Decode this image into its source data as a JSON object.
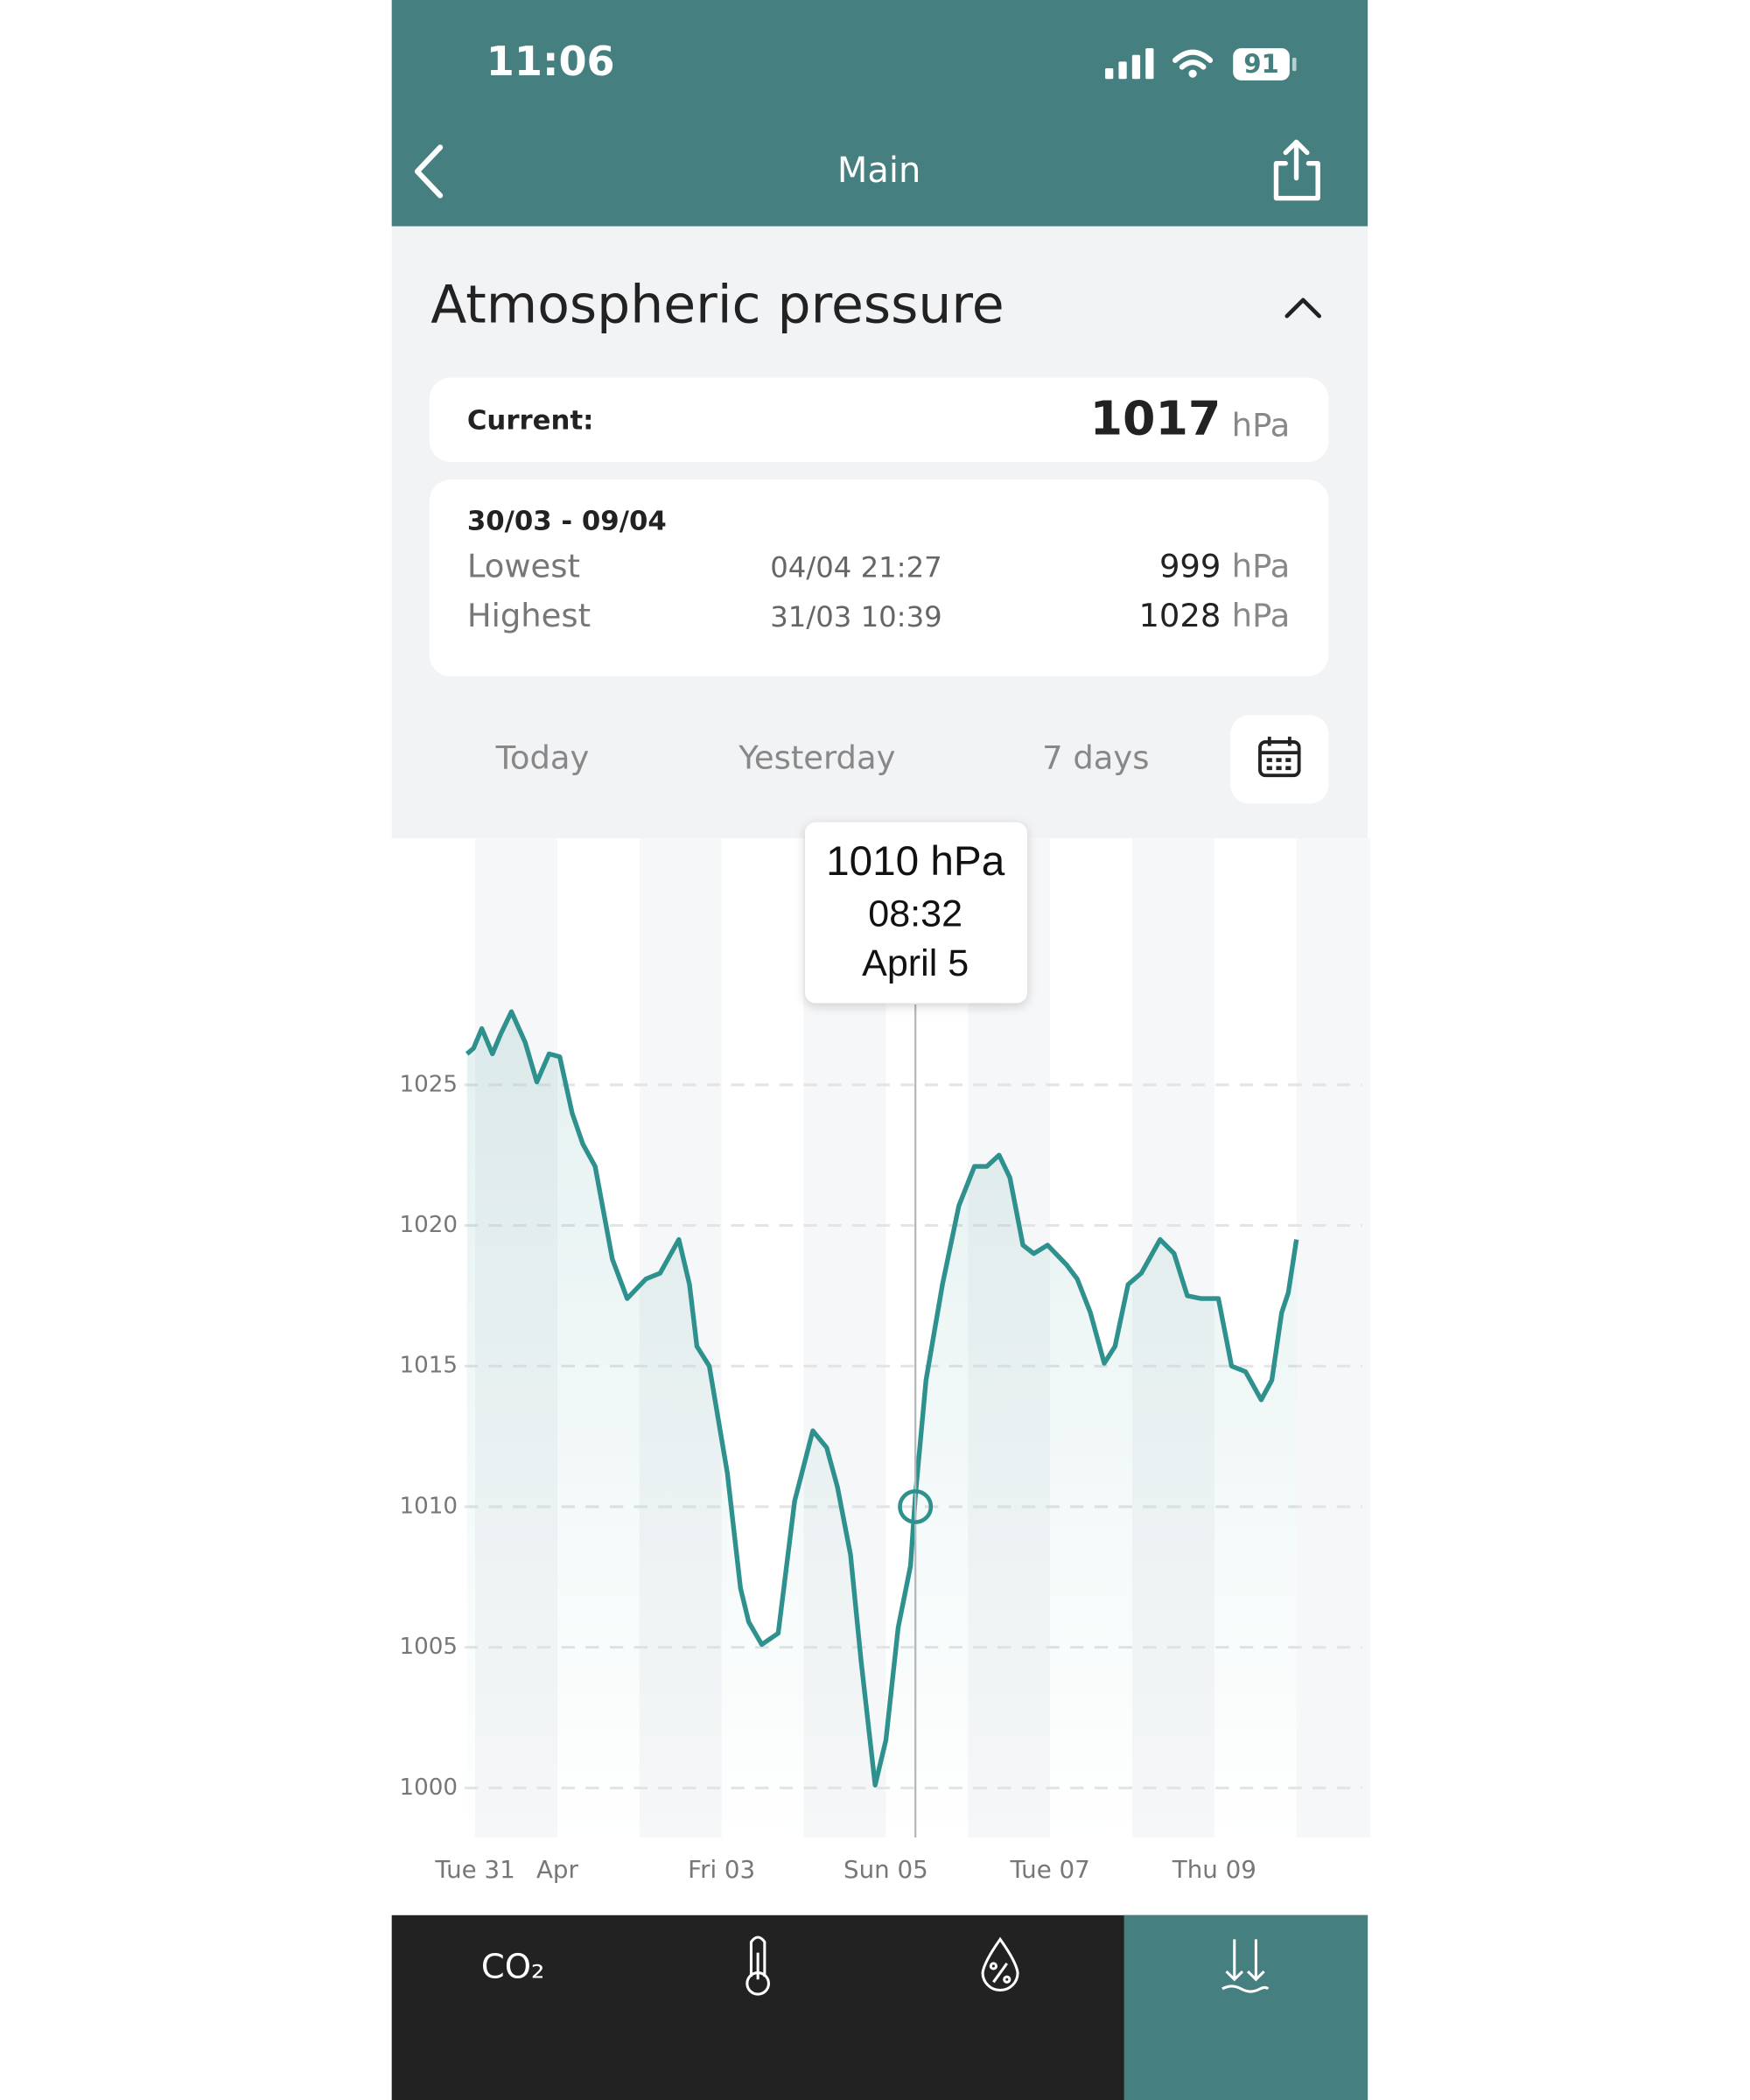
{
  "status_bar": {
    "time": "11:06",
    "battery": "91"
  },
  "header": {
    "title": "Main"
  },
  "section": {
    "title": "Atmospheric pressure"
  },
  "current": {
    "label": "Current:",
    "value": 1017,
    "unit": "hPa"
  },
  "summary": {
    "range": "30/03 - 09/04",
    "rows": [
      {
        "label": "Lowest",
        "time": "04/04 21:27",
        "value": 999,
        "unit": "hPa"
      },
      {
        "label": "Highest",
        "time": "31/03 10:39",
        "value": 1028,
        "unit": "hPa"
      }
    ]
  },
  "tabs": [
    "Today",
    "Yesterday",
    "7 days"
  ],
  "chart_data": {
    "type": "line",
    "x": [
      -0.1,
      -0.02,
      0.08,
      0.21,
      0.31,
      0.44,
      0.61,
      0.75,
      0.9,
      1.03,
      1.18,
      1.31,
      1.46,
      1.67,
      1.85,
      2.08,
      2.25,
      2.48,
      2.61,
      2.7,
      2.85,
      3.07,
      3.23,
      3.33,
      3.49,
      3.69,
      3.89,
      4.11,
      4.28,
      4.41,
      4.57,
      4.7,
      4.87,
      5.0,
      5.15,
      5.3,
      5.36,
      5.49,
      5.69,
      5.89,
      6.08,
      6.23,
      6.38,
      6.51,
      6.67,
      6.8,
      6.97,
      7.2,
      7.33,
      7.49,
      7.66,
      7.79,
      7.95,
      8.11,
      8.34,
      8.51,
      8.67,
      8.84,
      9.05,
      9.21,
      9.38,
      9.57,
      9.7,
      9.82,
      9.9,
      10.0
    ],
    "series": [
      {
        "color": "#2e918e",
        "values": [
          1026.1,
          1026.3,
          1027.0,
          1026.1,
          1026.8,
          1027.6,
          1026.5,
          1025.1,
          1026.1,
          1026.0,
          1024.0,
          1022.9,
          1022.1,
          1018.8,
          1017.4,
          1018.1,
          1018.3,
          1019.5,
          1017.9,
          1015.7,
          1015.0,
          1011.2,
          1007.1,
          1005.9,
          1005.1,
          1005.5,
          1010.2,
          1012.7,
          1012.1,
          1010.7,
          1008.3,
          1004.5,
          1000.1,
          1001.7,
          1005.7,
          1007.9,
          1010.4,
          1014.5,
          1017.9,
          1020.7,
          1022.1,
          1022.1,
          1022.5,
          1021.7,
          1019.3,
          1019.0,
          1019.3,
          1018.6,
          1018.1,
          1016.9,
          1015.1,
          1015.7,
          1017.9,
          1018.3,
          1019.5,
          1019.0,
          1017.5,
          1017.4,
          1017.4,
          1015.0,
          1014.8,
          1013.8,
          1014.5,
          1016.9,
          1017.6,
          1019.5
        ]
      }
    ],
    "xlim": [
      -1,
      10.9
    ],
    "xticks": [
      {
        "value": 0,
        "label": "Tue 31"
      },
      {
        "value": 1,
        "label": "Apr"
      },
      {
        "value": 3,
        "label": "Fri 03"
      },
      {
        "value": 5,
        "label": "Sun 05"
      },
      {
        "value": 7,
        "label": "Tue 07"
      },
      {
        "value": 9,
        "label": "Thu 09"
      }
    ],
    "ylim": [
      998,
      1034
    ],
    "yticks": [
      1000,
      1005,
      1010,
      1015,
      1020,
      1025
    ],
    "grid": true,
    "tooltip": {
      "x": 5.36,
      "value": 1010,
      "value_label": "1010 hPa",
      "time": "08:32",
      "date": "April 5"
    }
  },
  "bottom_nav": {
    "items": [
      "CO₂"
    ]
  }
}
